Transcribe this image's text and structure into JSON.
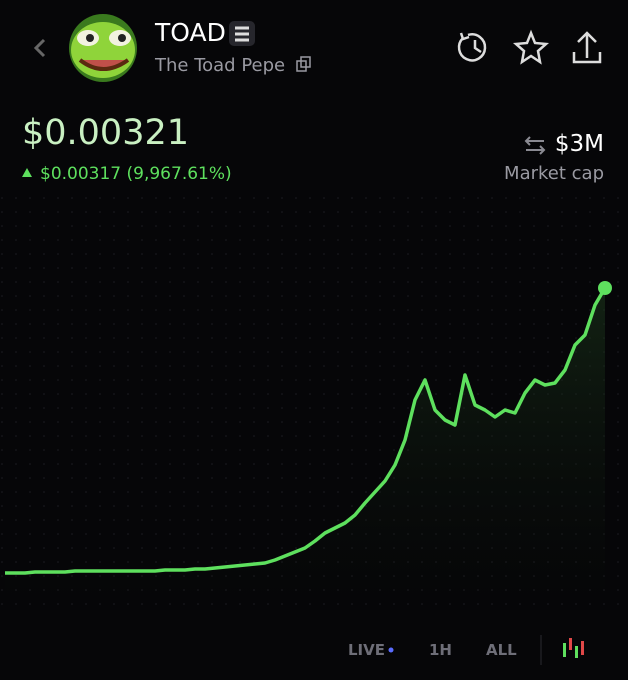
{
  "header": {
    "symbol": "TOAD",
    "name": "The Toad Pepe"
  },
  "price": {
    "current": "$0.00321",
    "change": "$0.00317 (9,967.61%)"
  },
  "market_cap": {
    "value": "$3M",
    "label": "Market cap"
  },
  "ranges": [
    "LIVE",
    "1H",
    "ALL"
  ],
  "chart_data": {
    "type": "line",
    "color": "#5ee05e",
    "values": [
      3.18e-05,
      3.18e-05,
      3.18e-05,
      4.3e-05,
      4.3e-05,
      4.3e-05,
      4.3e-05,
      5.41e-05,
      5.41e-05,
      5.41e-05,
      5.41e-05,
      5.41e-05,
      5.41e-05,
      5.41e-05,
      5.41e-05,
      5.41e-05,
      6.53e-05,
      6.53e-05,
      6.53e-05,
      7.64e-05,
      7.64e-05,
      8.76e-05,
      9.87e-05,
      0.0001099,
      0.000121,
      0.0001322,
      0.0001433,
      0.0001768,
      0.0002214,
      0.000266,
      0.0003106,
      0.0003886,
      0.0004778,
      0.0005336,
      0.0005893,
      0.0006785,
      0.0008123,
      0.000935,
      0.0010576,
      0.001236,
      0.0015148,
      0.0019608,
      0.0021838,
      0.0018493,
      0.0017378,
      0.001682,
      0.0022395,
      0.001905,
      0.0018493,
      0.0017712,
      0.0018493,
      0.0018159,
      0.0020389,
      0.0021838,
      0.0021281,
      0.0021504,
      0.0022953,
      0.0025741,
      0.0026856,
      0.0030201,
      0.00321
    ]
  }
}
